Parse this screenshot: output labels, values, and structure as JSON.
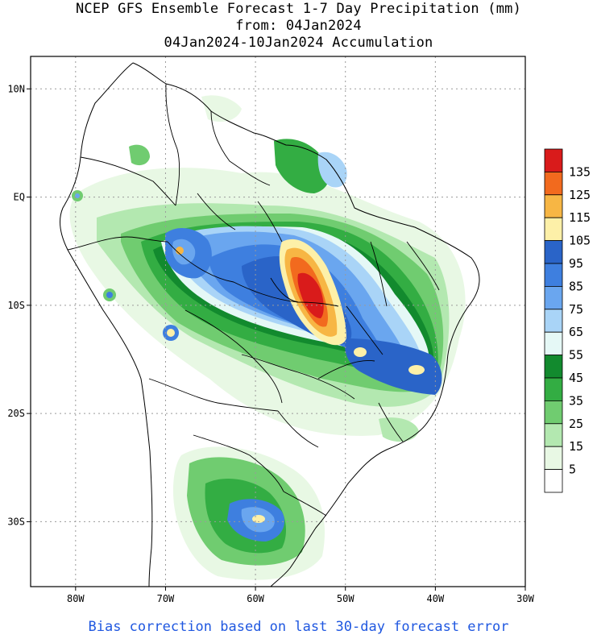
{
  "header": {
    "line1": "NCEP GFS Ensemble Forecast 1-7 Day Precipitation (mm)",
    "line2": "from: 04Jan2024",
    "line3": "04Jan2024-10Jan2024 Accumulation"
  },
  "footer": {
    "note": "Bias correction based on last 30-day forecast error"
  },
  "map": {
    "lon_range": [
      -85,
      -30
    ],
    "lat_range": [
      -36,
      13
    ],
    "lon_ticks": [
      {
        "lon": -80,
        "label": "80W"
      },
      {
        "lon": -70,
        "label": "70W"
      },
      {
        "lon": -60,
        "label": "60W"
      },
      {
        "lon": -50,
        "label": "50W"
      },
      {
        "lon": -40,
        "label": "40W"
      },
      {
        "lon": -30,
        "label": "30W"
      }
    ],
    "lat_ticks": [
      {
        "lat": 10,
        "label": "10N"
      },
      {
        "lat": 0,
        "label": "EQ"
      },
      {
        "lat": -10,
        "label": "10S"
      },
      {
        "lat": -20,
        "label": "20S"
      },
      {
        "lat": -30,
        "label": "30S"
      }
    ],
    "gridlines": true
  },
  "legend": {
    "labels": [
      "135",
      "125",
      "115",
      "105",
      "95",
      "85",
      "75",
      "65",
      "55",
      "45",
      "35",
      "25",
      "15",
      "5"
    ],
    "colors": [
      "#d91b1b",
      "#f26a1e",
      "#f7b644",
      "#fdf0a8",
      "#2a64c8",
      "#3e7fdf",
      "#6aa6ef",
      "#a9d4f7",
      "#e5f8f6",
      "#128a2e",
      "#33ad43",
      "#70cc70",
      "#b3e8b0",
      "#e8f8e4",
      "#ffffff"
    ]
  }
}
